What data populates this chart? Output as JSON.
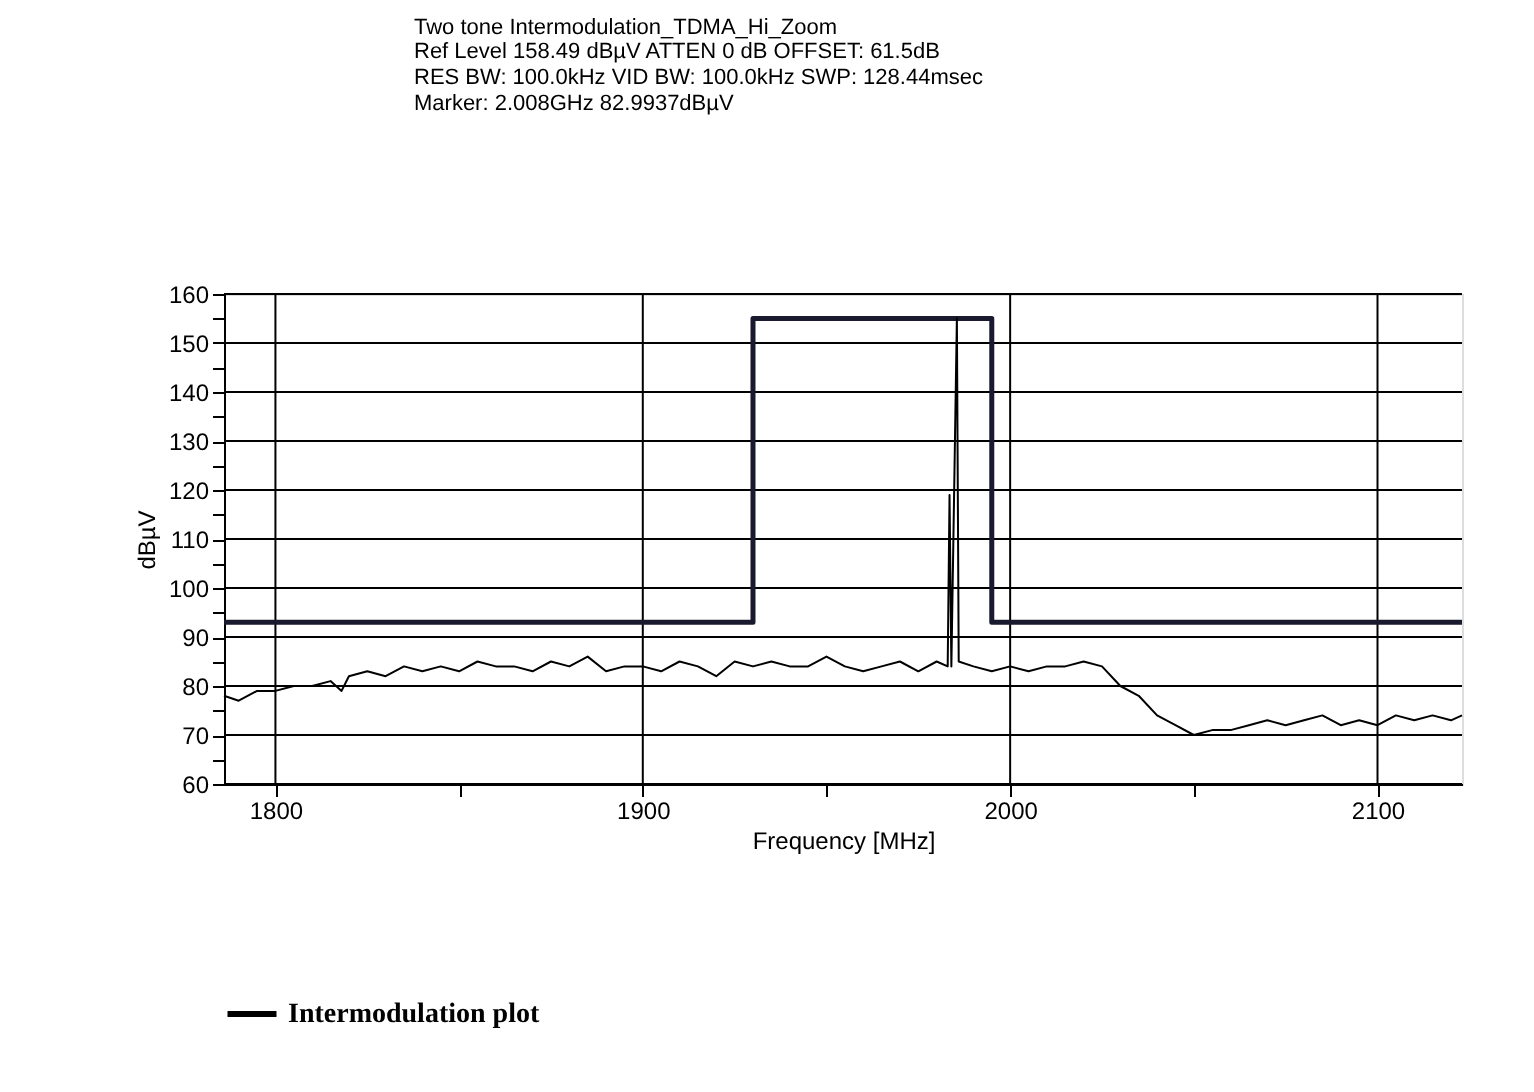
{
  "chart_data": {
    "type": "line",
    "title": "Two tone Intermodulation_TDMA_Hi_Zoom",
    "annotations": [
      "Ref Level 158.49 dBµV    ATTEN 0 dB    OFFSET: 61.5dB",
      "RES BW: 100.0kHz  VID BW: 100.0kHz  SWP: 128.44msec",
      "Marker: 2.008GHz  82.9937dBµV"
    ],
    "xlabel": "Frequency [MHz]",
    "ylabel": "dBµV",
    "xlim": [
      1786,
      2123
    ],
    "ylim": [
      60,
      160
    ],
    "xticks": [
      1800,
      {
        "value": 1850,
        "label": null
      },
      1900,
      {
        "value": 1950,
        "label": null
      },
      2000,
      {
        "value": 2050,
        "label": null
      },
      2100
    ],
    "yticks": [
      60,
      {
        "value": 65,
        "label": null
      },
      70,
      {
        "value": 75,
        "label": null
      },
      80,
      {
        "value": 85,
        "label": null
      },
      90,
      {
        "value": 95,
        "label": null
      },
      100,
      {
        "value": 105,
        "label": null
      },
      110,
      {
        "value": 115,
        "label": null
      },
      120,
      {
        "value": 125,
        "label": null
      },
      130,
      {
        "value": 135,
        "label": null
      },
      140,
      {
        "value": 145,
        "label": null
      },
      150,
      {
        "value": 155,
        "label": null
      },
      160
    ],
    "grid": true,
    "legend": "bottom",
    "line_style": "solid",
    "marker": "none",
    "series": [
      {
        "type": "line",
        "color": "#1a1a2e",
        "x": [
          1786,
          1930,
          1930,
          1995,
          1995,
          2123
        ],
        "values": [
          93,
          93,
          155,
          155,
          93,
          93
        ]
      },
      {
        "type": "line",
        "name": "Intermodulation plot",
        "color": "#000000",
        "x": [
          1786,
          1790,
          1795,
          1800,
          1805,
          1810,
          1815,
          1818,
          1820,
          1825,
          1830,
          1835,
          1840,
          1845,
          1850,
          1855,
          1860,
          1865,
          1870,
          1875,
          1880,
          1885,
          1890,
          1895,
          1900,
          1905,
          1910,
          1915,
          1920,
          1925,
          1930,
          1935,
          1940,
          1945,
          1950,
          1955,
          1960,
          1965,
          1970,
          1975,
          1980,
          1983,
          1983.5,
          1984,
          1985.5,
          1986,
          1990,
          1995,
          2000,
          2005,
          2010,
          2015,
          2020,
          2025,
          2030,
          2035,
          2040,
          2045,
          2050,
          2055,
          2060,
          2065,
          2070,
          2075,
          2080,
          2085,
          2090,
          2095,
          2100,
          2105,
          2110,
          2115,
          2120,
          2123
        ],
        "values": [
          78,
          77,
          79,
          79,
          80,
          80,
          81,
          79,
          82,
          83,
          82,
          84,
          83,
          84,
          83,
          85,
          84,
          84,
          83,
          85,
          84,
          86,
          83,
          84,
          84,
          83,
          85,
          84,
          82,
          85,
          84,
          85,
          84,
          84,
          86,
          84,
          83,
          84,
          85,
          83,
          85,
          84,
          119,
          84,
          155,
          85,
          84,
          83,
          84,
          83,
          84,
          84,
          85,
          84,
          80,
          78,
          74,
          72,
          70,
          71,
          71,
          72,
          73,
          72,
          73,
          74,
          72,
          73,
          72,
          74,
          73,
          74,
          73,
          74
        ]
      }
    ]
  }
}
